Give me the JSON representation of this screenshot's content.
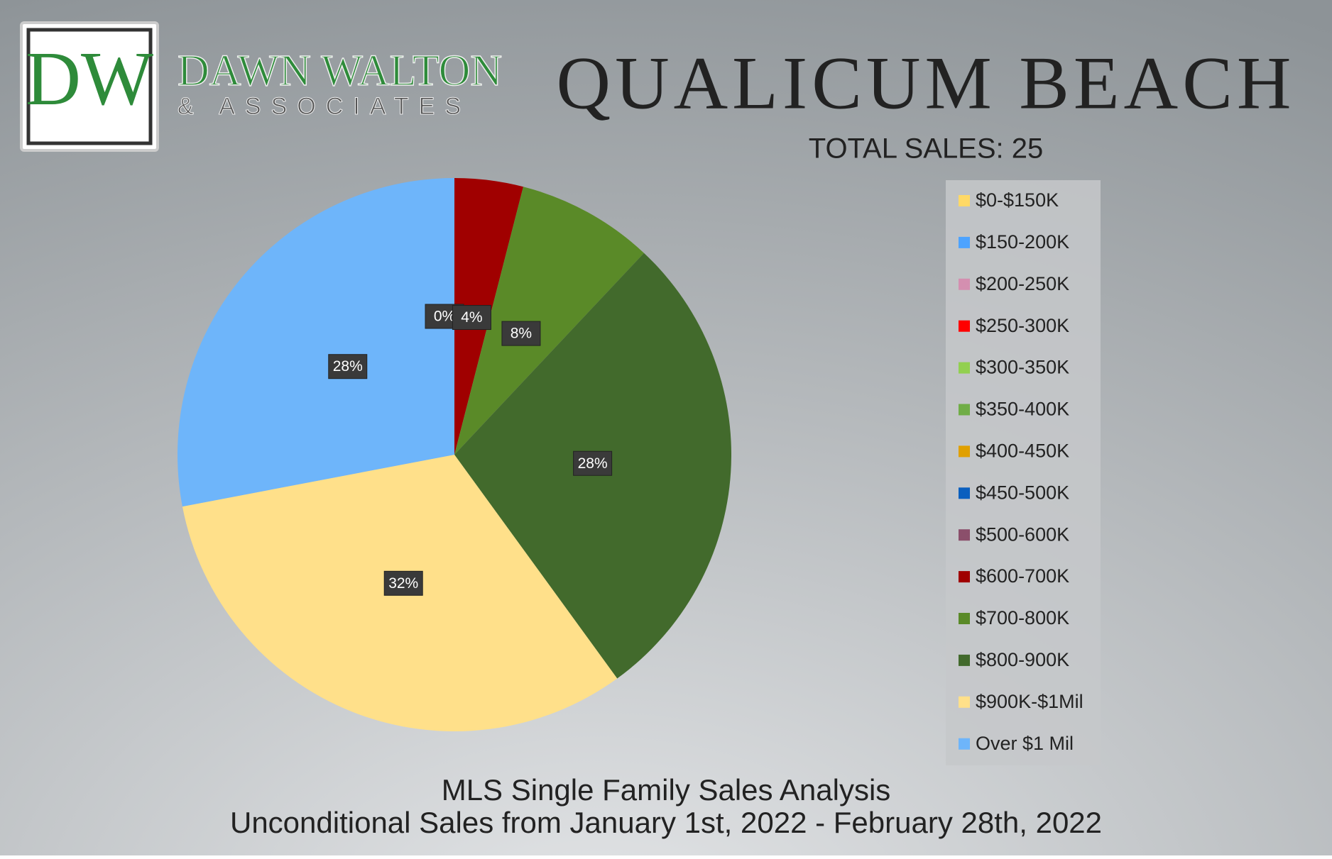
{
  "logo": {
    "monogram": "DW",
    "name": "DAWN WALTON",
    "tagline": "& ASSOCIATES"
  },
  "chart_data": {
    "type": "pie",
    "title": "QUALICUM BEACH",
    "subtitle": "TOTAL SALES: 25",
    "footer": [
      "MLS Single Family Sales Analysis",
      "Unconditional Sales from January 1st, 2022 - February 28th, 2022"
    ],
    "categories": [
      "$0-$150K",
      "$150-200K",
      "$200-250K",
      "$250-300K",
      "$300-350K",
      "$350-400K",
      "$400-450K",
      "$450-500K",
      "$500-600K",
      "$600-700K",
      "$700-800K",
      "$800-900K",
      "$900K-$1Mil",
      "Over $1 Mil"
    ],
    "values": [
      0,
      0,
      0,
      0,
      0,
      0,
      0,
      0,
      0,
      4,
      8,
      28,
      32,
      28
    ],
    "value_labels": [
      "0%",
      "0%",
      "0%",
      "0%",
      "0%",
      "0%",
      "0%",
      "0%",
      "0%",
      "4%",
      "8%",
      "28%",
      "32%",
      "28%"
    ],
    "colors": [
      "#ffd966",
      "#4da3ff",
      "#d48fb0",
      "#ff0000",
      "#92d050",
      "#70ad47",
      "#e0a000",
      "#0a5fbf",
      "#8b4f6b",
      "#a00000",
      "#5a8a28",
      "#426a2c",
      "#ffe08a",
      "#6eb5fa"
    ],
    "legend": "right"
  }
}
